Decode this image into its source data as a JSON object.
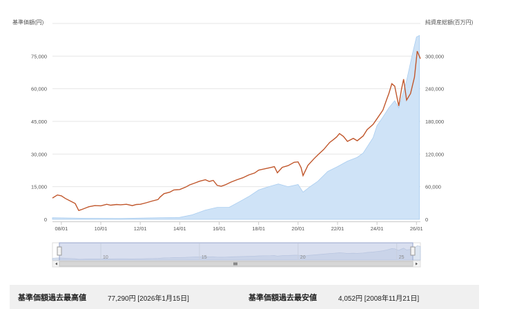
{
  "chart_data": {
    "type": "line",
    "left_axis_title": "基準価額(円)",
    "right_axis_title": "純資産総額(百万円)",
    "x_tick_labels": [
      "08/01",
      "10/01",
      "12/01",
      "14/01",
      "16/01",
      "18/01",
      "20/01",
      "22/01",
      "24/01",
      "26/01"
    ],
    "x_range": [
      2007.55,
      2026.2
    ],
    "y_left_ticks": [
      "0",
      "15,000",
      "30,000",
      "45,000",
      "60,000",
      "75,000"
    ],
    "y_left_range": [
      0,
      90000
    ],
    "y_right_ticks": [
      "0",
      "60,000",
      "120,000",
      "180,000",
      "240,000",
      "300,000"
    ],
    "y_right_range": [
      0,
      360000
    ],
    "grid": true,
    "series": [
      {
        "role": "nav_price",
        "axis": "left",
        "style": "line",
        "color": "#c0562b",
        "x": [
          2007.55,
          2007.8,
          2008.0,
          2008.2,
          2008.5,
          2008.7,
          2008.88,
          2009.0,
          2009.2,
          2009.4,
          2009.7,
          2010.0,
          2010.3,
          2010.5,
          2010.8,
          2011.0,
          2011.3,
          2011.6,
          2011.8,
          2012.0,
          2012.3,
          2012.6,
          2012.9,
          2013.0,
          2013.2,
          2013.5,
          2013.7,
          2014.0,
          2014.3,
          2014.5,
          2014.8,
          2015.0,
          2015.3,
          2015.5,
          2015.7,
          2015.9,
          2016.1,
          2016.3,
          2016.6,
          2016.9,
          2017.2,
          2017.5,
          2017.8,
          2018.0,
          2018.3,
          2018.6,
          2018.8,
          2018.95,
          2019.2,
          2019.5,
          2019.8,
          2020.0,
          2020.15,
          2020.25,
          2020.5,
          2020.8,
          2021.0,
          2021.3,
          2021.6,
          2021.8,
          2021.95,
          2022.1,
          2022.3,
          2022.5,
          2022.8,
          2023.0,
          2023.3,
          2023.5,
          2023.8,
          2024.0,
          2024.3,
          2024.5,
          2024.6,
          2024.75,
          2024.9,
          2025.1,
          2025.25,
          2025.35,
          2025.5,
          2025.7,
          2025.9,
          2026.04,
          2026.2
        ],
        "y": [
          9800,
          11200,
          10800,
          9600,
          8200,
          7300,
          4052,
          4400,
          5100,
          5800,
          6300,
          6200,
          6900,
          6500,
          6800,
          6700,
          6900,
          6300,
          6800,
          6900,
          7600,
          8400,
          9100,
          10200,
          11800,
          12500,
          13500,
          13700,
          14800,
          15800,
          16800,
          17500,
          18200,
          17400,
          17900,
          15600,
          15200,
          15800,
          17100,
          18200,
          19100,
          20400,
          21300,
          22600,
          23200,
          23800,
          24200,
          21400,
          23900,
          24700,
          26200,
          26400,
          23800,
          20100,
          24800,
          27800,
          29600,
          32100,
          35300,
          36700,
          37800,
          39400,
          38100,
          35800,
          37200,
          36100,
          38300,
          41200,
          43600,
          46200,
          50200,
          55300,
          57800,
          62300,
          61200,
          52100,
          60100,
          64400,
          54800,
          57800,
          65300,
          77290,
          73800
        ]
      },
      {
        "role": "net_assets",
        "axis": "right",
        "style": "area",
        "color": "#9cc8f0",
        "x": [
          2007.55,
          2009.0,
          2011.0,
          2013.0,
          2014.0,
          2014.6,
          2015.3,
          2015.9,
          2016.5,
          2017.0,
          2017.5,
          2018.0,
          2018.5,
          2019.0,
          2019.5,
          2020.0,
          2020.25,
          2020.6,
          2021.0,
          2021.5,
          2022.0,
          2022.5,
          2023.0,
          2023.3,
          2023.8,
          2024.0,
          2024.3,
          2024.6,
          2024.9,
          2025.1,
          2025.3,
          2025.5,
          2025.8,
          2026.0,
          2026.15
        ],
        "y": [
          3000,
          2000,
          1500,
          3000,
          3500,
          8000,
          17000,
          22000,
          22000,
          32000,
          42000,
          54000,
          60000,
          65000,
          60000,
          64000,
          50000,
          60000,
          70000,
          88000,
          97000,
          107000,
          114000,
          122000,
          150000,
          172000,
          188000,
          205000,
          218000,
          205000,
          230000,
          255000,
          305000,
          335000,
          338000
        ]
      }
    ],
    "navigator": {
      "tick_labels": [
        "10",
        "15",
        "20",
        "25"
      ]
    }
  },
  "summary": {
    "high_label": "基準価額過去最高値",
    "high_value": "77,290円 [2026年1月15日]",
    "low_label": "基準価額過去最安値",
    "low_value": "4,052円 [2008年11月21日]"
  }
}
